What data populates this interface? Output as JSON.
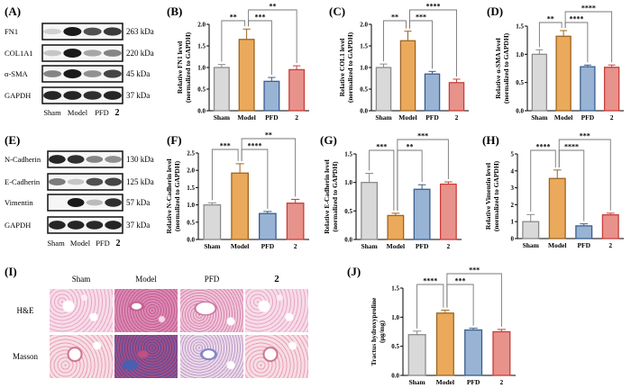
{
  "colors": {
    "Sham": {
      "fill": "#d9d9d9",
      "stroke": "#8a8a8a"
    },
    "Model": {
      "fill": "#eba95b",
      "stroke": "#9c6420"
    },
    "PFD": {
      "fill": "#98b3d4",
      "stroke": "#3a5e8c"
    },
    "2": {
      "fill": "#e8928c",
      "stroke": "#c83e38"
    }
  },
  "blots": [
    {
      "panel": "(A)",
      "lanes": [
        "Sham",
        "Model",
        "PFD",
        "2"
      ],
      "rows": [
        {
          "protein": "FN1",
          "size": "263 kDa",
          "intensity": [
            0.1,
            0.95,
            0.7,
            0.8
          ]
        },
        {
          "protein": "COL1A1",
          "size": "220 kDa",
          "intensity": [
            0.15,
            0.95,
            0.3,
            0.45
          ]
        },
        {
          "protein": "α-SMA",
          "size": "45 kDa",
          "intensity": [
            0.45,
            0.95,
            0.4,
            0.75
          ]
        },
        {
          "protein": "GAPDH",
          "size": "37 kDa",
          "intensity": [
            0.9,
            0.9,
            0.85,
            0.9
          ]
        }
      ]
    },
    {
      "panel": "(E)",
      "lanes": [
        "Sham",
        "Model",
        "PFD",
        "2"
      ],
      "rows": [
        {
          "protein": "N-Cadherin",
          "size": "130 kDa",
          "intensity": [
            0.9,
            0.85,
            0.45,
            0.4
          ]
        },
        {
          "protein": "E-Cadherin",
          "size": "125 kDa",
          "intensity": [
            0.5,
            0.15,
            0.7,
            0.75
          ]
        },
        {
          "protein": "Vimentin",
          "size": "57 kDa",
          "intensity": [
            0.0,
            0.95,
            0.2,
            0.85
          ]
        },
        {
          "protein": "GAPDH",
          "size": "37 kDa",
          "intensity": [
            0.9,
            0.9,
            0.88,
            0.9
          ]
        }
      ]
    }
  ],
  "chart_data": [
    {
      "panel": "(B)",
      "type": "bar",
      "categories": [
        "Sham",
        "Model",
        "PFD",
        "2"
      ],
      "values": [
        1.0,
        1.65,
        0.68,
        0.95
      ],
      "errors": [
        0.07,
        0.24,
        0.09,
        0.09
      ],
      "ylim": [
        0,
        2.0
      ],
      "yticks": [
        "0.0",
        "0.5",
        "1.0",
        "1.5",
        "2.0"
      ],
      "ylabel": [
        "Relative FN1  level",
        "(normalized to GAPDH)"
      ],
      "significance": [
        {
          "pair": [
            "Sham",
            "Model"
          ],
          "label": "**"
        },
        {
          "pair": [
            "Model",
            "PFD"
          ],
          "label": "***"
        },
        {
          "pair": [
            "Model",
            "2"
          ],
          "label": "**"
        }
      ]
    },
    {
      "panel": "(C)",
      "type": "bar",
      "categories": [
        "Sham",
        "Model",
        "PFD",
        "2"
      ],
      "values": [
        1.0,
        1.62,
        0.85,
        0.65
      ],
      "errors": [
        0.08,
        0.22,
        0.06,
        0.08
      ],
      "ylim": [
        0,
        2.0
      ],
      "yticks": [
        "0.0",
        "0.5",
        "1.0",
        "1.5",
        "2.0"
      ],
      "ylabel": [
        "Relative COL1  level",
        "(normalized to GAPDH)"
      ],
      "significance": [
        {
          "pair": [
            "Sham",
            "Model"
          ],
          "label": "**"
        },
        {
          "pair": [
            "Model",
            "PFD"
          ],
          "label": "***"
        },
        {
          "pair": [
            "Model",
            "2"
          ],
          "label": "****"
        }
      ]
    },
    {
      "panel": "(D)",
      "type": "bar",
      "categories": [
        "Sham",
        "Model",
        "PFD",
        "2"
      ],
      "values": [
        1.0,
        1.32,
        0.78,
        0.77
      ],
      "errors": [
        0.08,
        0.1,
        0.03,
        0.04
      ],
      "ylim": [
        0,
        1.5
      ],
      "yticks": [
        "0.0",
        "0.5",
        "1.0",
        "1.5"
      ],
      "ylabel": [
        "Relative α-SMA level",
        "(normalized to GAPDH)"
      ],
      "significance": [
        {
          "pair": [
            "Sham",
            "Model"
          ],
          "label": "**"
        },
        {
          "pair": [
            "Model",
            "PFD"
          ],
          "label": "****"
        },
        {
          "pair": [
            "Model",
            "2"
          ],
          "label": "****"
        }
      ]
    },
    {
      "panel": "(F)",
      "type": "bar",
      "categories": [
        "Sham",
        "Model",
        "PFD",
        "2"
      ],
      "values": [
        1.0,
        1.92,
        0.75,
        1.05
      ],
      "errors": [
        0.06,
        0.27,
        0.06,
        0.11
      ],
      "ylim": [
        0,
        2.5
      ],
      "yticks": [
        "0.0",
        "0.5",
        "1.0",
        "1.5",
        "2.0",
        "2.5"
      ],
      "ylabel": [
        "Relative  N-Cadherin  level",
        "(normalized to GAPDH)"
      ],
      "significance": [
        {
          "pair": [
            "Sham",
            "Model"
          ],
          "label": "***"
        },
        {
          "pair": [
            "Model",
            "PFD"
          ],
          "label": "****"
        },
        {
          "pair": [
            "Model",
            "2"
          ],
          "label": "**"
        }
      ]
    },
    {
      "panel": "(G)",
      "type": "bar",
      "categories": [
        "Sham",
        "Model",
        "PFD",
        "2"
      ],
      "values": [
        1.0,
        0.42,
        0.88,
        0.97
      ],
      "errors": [
        0.16,
        0.04,
        0.08,
        0.04
      ],
      "ylim": [
        0,
        1.5
      ],
      "yticks": [
        "0.0",
        "0.5",
        "1.0",
        "1.5"
      ],
      "ylabel": [
        "Relative  E-Cadherin  level",
        "(normalized to GAPDH)"
      ],
      "significance": [
        {
          "pair": [
            "Sham",
            "Model"
          ],
          "label": "***"
        },
        {
          "pair": [
            "Model",
            "PFD"
          ],
          "label": "**"
        },
        {
          "pair": [
            "Model",
            "2"
          ],
          "label": "***"
        }
      ]
    },
    {
      "panel": "(H)",
      "type": "bar",
      "categories": [
        "Sham",
        "Model",
        "PFD",
        "2"
      ],
      "values": [
        1.0,
        3.55,
        0.75,
        1.4
      ],
      "errors": [
        0.42,
        0.5,
        0.12,
        0.1
      ],
      "ylim": [
        0,
        5
      ],
      "yticks": [
        "0",
        "1",
        "2",
        "3",
        "4",
        "5"
      ],
      "ylabel": [
        "Relative  Vimentin  level",
        "(normalized to GAPDH)"
      ],
      "significance": [
        {
          "pair": [
            "Sham",
            "Model"
          ],
          "label": "****"
        },
        {
          "pair": [
            "Model",
            "PFD"
          ],
          "label": "****"
        },
        {
          "pair": [
            "Model",
            "2"
          ],
          "label": "***"
        }
      ]
    },
    {
      "panel": "(J)",
      "type": "bar",
      "categories": [
        "Sham",
        "Model",
        "PFD",
        "2"
      ],
      "values": [
        0.7,
        1.07,
        0.78,
        0.75
      ],
      "errors": [
        0.06,
        0.05,
        0.03,
        0.04
      ],
      "ylim": [
        0,
        1.5
      ],
      "yticks": [
        "0.0",
        "0.5",
        "1.0",
        "1.5"
      ],
      "ylabel": [
        "Tractus hydroxyproline",
        "(μg/mg)"
      ],
      "significance": [
        {
          "pair": [
            "Sham",
            "Model"
          ],
          "label": "****"
        },
        {
          "pair": [
            "Model",
            "PFD"
          ],
          "label": "***"
        },
        {
          "pair": [
            "Model",
            "2"
          ],
          "label": "***"
        }
      ]
    }
  ],
  "histology": {
    "panel": "(I)",
    "columns": [
      "Sham",
      "Model",
      "PFD",
      "2"
    ],
    "rows": [
      "H&E",
      "Masson"
    ]
  }
}
